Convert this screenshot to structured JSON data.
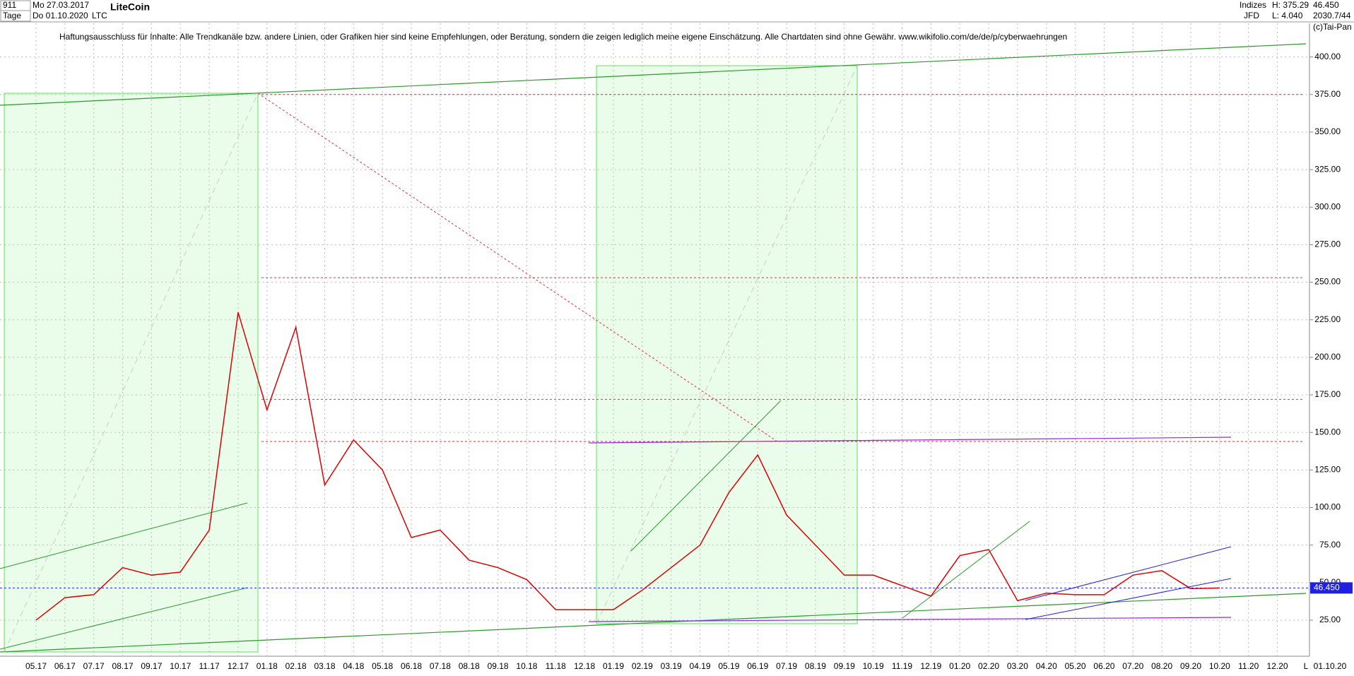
{
  "header": {
    "symbol_id": "911",
    "start": "Mo 27.03.2017",
    "period": "Tage",
    "end": "Do 01.10.2020",
    "name": "LiteCoin",
    "ticker": "LTC",
    "group": "Indizes",
    "source": "JFD",
    "high": "H: 375.29",
    "low": "L: 4.040",
    "count": "2030.7/44",
    "copyright": "(c)Tai-Pan",
    "disclaimer": "Haftungsausschluss für Inhalte: Alle Trendkanäle bzw. andere Linien, oder Grafiken hier sind keine Empfehlungen, oder Beratung, sondern die zeigen lediglich meine eigene Einschätzung. Alle Chartdaten sind ohne Gewähr.  www.wikifolio.com/de/de/p/cyberwaehrungen",
    "axis_end": "01.10.20",
    "axis_corner": "L"
  },
  "chart_data": {
    "type": "line",
    "categories": [
      "05.17",
      "06.17",
      "07.17",
      "08.17",
      "09.17",
      "10.17",
      "11.17",
      "12.17",
      "01.18",
      "02.18",
      "03.18",
      "04.18",
      "05.18",
      "06.18",
      "07.18",
      "08.18",
      "09.18",
      "10.18",
      "11.18",
      "12.18",
      "01.19",
      "02.19",
      "03.19",
      "04.19",
      "05.19",
      "06.19",
      "07.19",
      "08.19",
      "09.19",
      "10.19",
      "11.19",
      "12.19",
      "01.20",
      "02.20",
      "03.20",
      "04.20",
      "05.20",
      "06.20",
      "07.20",
      "08.20",
      "09.20",
      "10.20",
      "11.20",
      "12.20"
    ],
    "series": [
      {
        "name": "LTC",
        "color": "#e00000",
        "values": [
          25,
          40,
          42,
          60,
          55,
          57,
          85,
          230,
          165,
          220,
          115,
          145,
          125,
          80,
          85,
          65,
          60,
          52,
          32,
          32,
          32,
          45,
          60,
          75,
          110,
          135,
          95,
          75,
          55,
          55,
          48,
          41,
          68,
          72,
          38,
          43,
          42,
          42,
          55,
          58,
          46,
          46.45,
          null,
          null
        ]
      }
    ],
    "ylim": [
      1,
      422.4
    ],
    "yticks": [
      {
        "value": 25,
        "label": "25.00"
      },
      {
        "value": 50,
        "label": "50.00"
      },
      {
        "value": 75,
        "label": "75.00"
      },
      {
        "value": 100,
        "label": "100.00"
      },
      {
        "value": 125,
        "label": "125.00"
      },
      {
        "value": 150,
        "label": "150.00"
      },
      {
        "value": 175,
        "label": "175.00"
      },
      {
        "value": 200,
        "label": "200.00"
      },
      {
        "value": 225,
        "label": "225.00"
      },
      {
        "value": 250,
        "label": "250.00"
      },
      {
        "value": 275,
        "label": "275.00"
      },
      {
        "value": 300,
        "label": "300.00"
      },
      {
        "value": 325,
        "label": "325.00"
      },
      {
        "value": 350,
        "label": "350.00"
      },
      {
        "value": 375,
        "label": "375.00"
      },
      {
        "value": 400,
        "label": "400.00"
      }
    ],
    "grid": true,
    "reference_lines": [
      {
        "value": 375,
        "color": "#e03030"
      },
      {
        "value": 253,
        "color": "#e03030"
      },
      {
        "value": 172,
        "color": "#e03030"
      },
      {
        "value": 144,
        "color": "#e03030"
      }
    ],
    "last_value": {
      "value": 46.45,
      "label": "46.450",
      "color": "#2020e0"
    }
  }
}
